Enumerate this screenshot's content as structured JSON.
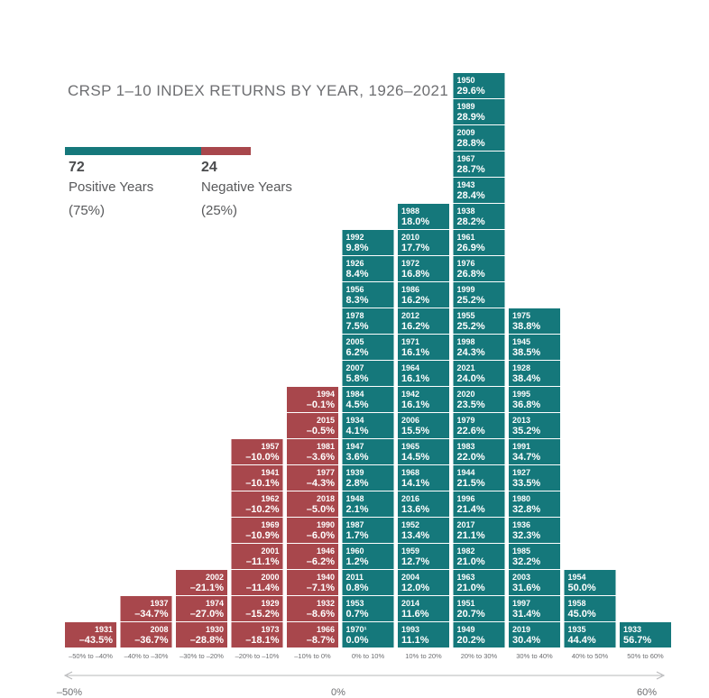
{
  "colors": {
    "positive": "#15787b",
    "negative": "#a8474c",
    "axis": "#b7b8ba",
    "text": "#6d6e71"
  },
  "chart_data": {
    "type": "bar",
    "title": "CRSP 1–10 INDEX RETURNS BY YEAR, 1926–2021",
    "summary": {
      "positive": {
        "count": "72",
        "label": "Positive Years",
        "pct": "(75%)"
      },
      "negative": {
        "count": "24",
        "label": "Negative Years",
        "pct": "(25%)"
      }
    },
    "bins": [
      {
        "label": "–50% to –40%",
        "sign": "negative",
        "years": [
          {
            "year": "1931",
            "value": "–43.5%"
          }
        ]
      },
      {
        "label": "–40% to –30%",
        "sign": "negative",
        "years": [
          {
            "year": "2008",
            "value": "–36.7%"
          },
          {
            "year": "1937",
            "value": "–34.7%"
          }
        ]
      },
      {
        "label": "–30% to –20%",
        "sign": "negative",
        "years": [
          {
            "year": "1930",
            "value": "–28.8%"
          },
          {
            "year": "1974",
            "value": "–27.0%"
          },
          {
            "year": "2002",
            "value": "–21.1%"
          }
        ]
      },
      {
        "label": "–20% to –10%",
        "sign": "negative",
        "years": [
          {
            "year": "1973",
            "value": "–18.1%"
          },
          {
            "year": "1929",
            "value": "–15.2%"
          },
          {
            "year": "2000",
            "value": "–11.4%"
          },
          {
            "year": "2001",
            "value": "–11.1%"
          },
          {
            "year": "1969",
            "value": "–10.9%"
          },
          {
            "year": "1962",
            "value": "–10.2%"
          },
          {
            "year": "1941",
            "value": "–10.1%"
          },
          {
            "year": "1957",
            "value": "–10.0%"
          }
        ]
      },
      {
        "label": "–10% to 0%",
        "sign": "negative",
        "years": [
          {
            "year": "1966",
            "value": "–8.7%"
          },
          {
            "year": "1932",
            "value": "–8.6%"
          },
          {
            "year": "1940",
            "value": "–7.1%"
          },
          {
            "year": "1946",
            "value": "–6.2%"
          },
          {
            "year": "1990",
            "value": "–6.0%"
          },
          {
            "year": "2018",
            "value": "–5.0%"
          },
          {
            "year": "1977",
            "value": "–4.3%"
          },
          {
            "year": "1981",
            "value": "–3.6%"
          },
          {
            "year": "2015",
            "value": "–0.5%"
          },
          {
            "year": "1994",
            "value": "–0.1%"
          }
        ]
      },
      {
        "label": "0% to 10%",
        "sign": "positive",
        "years": [
          {
            "year": "1970¹",
            "value": "0.0%"
          },
          {
            "year": "1953",
            "value": "0.7%"
          },
          {
            "year": "2011",
            "value": "0.8%"
          },
          {
            "year": "1960",
            "value": "1.2%"
          },
          {
            "year": "1987",
            "value": "1.7%"
          },
          {
            "year": "1948",
            "value": "2.1%"
          },
          {
            "year": "1939",
            "value": "2.8%"
          },
          {
            "year": "1947",
            "value": "3.6%"
          },
          {
            "year": "1934",
            "value": "4.1%"
          },
          {
            "year": "1984",
            "value": "4.5%"
          },
          {
            "year": "2007",
            "value": "5.8%"
          },
          {
            "year": "2005",
            "value": "6.2%"
          },
          {
            "year": "1978",
            "value": "7.5%"
          },
          {
            "year": "1956",
            "value": "8.3%"
          },
          {
            "year": "1926",
            "value": "8.4%"
          },
          {
            "year": "1992",
            "value": "9.8%"
          }
        ]
      },
      {
        "label": "10% to 20%",
        "sign": "positive",
        "years": [
          {
            "year": "1993",
            "value": "11.1%"
          },
          {
            "year": "2014",
            "value": "11.6%"
          },
          {
            "year": "2004",
            "value": "12.0%"
          },
          {
            "year": "1959",
            "value": "12.7%"
          },
          {
            "year": "1952",
            "value": "13.4%"
          },
          {
            "year": "2016",
            "value": "13.6%"
          },
          {
            "year": "1968",
            "value": "14.1%"
          },
          {
            "year": "1965",
            "value": "14.5%"
          },
          {
            "year": "2006",
            "value": "15.5%"
          },
          {
            "year": "1942",
            "value": "16.1%"
          },
          {
            "year": "1964",
            "value": "16.1%"
          },
          {
            "year": "1971",
            "value": "16.1%"
          },
          {
            "year": "2012",
            "value": "16.2%"
          },
          {
            "year": "1986",
            "value": "16.2%"
          },
          {
            "year": "1972",
            "value": "16.8%"
          },
          {
            "year": "2010",
            "value": "17.7%"
          },
          {
            "year": "1988",
            "value": "18.0%"
          }
        ]
      },
      {
        "label": "20% to 30%",
        "sign": "positive",
        "years": [
          {
            "year": "1949",
            "value": "20.2%"
          },
          {
            "year": "1951",
            "value": "20.7%"
          },
          {
            "year": "1963",
            "value": "21.0%"
          },
          {
            "year": "1982",
            "value": "21.0%"
          },
          {
            "year": "2017",
            "value": "21.1%"
          },
          {
            "year": "1996",
            "value": "21.4%"
          },
          {
            "year": "1944",
            "value": "21.5%"
          },
          {
            "year": "1983",
            "value": "22.0%"
          },
          {
            "year": "1979",
            "value": "22.6%"
          },
          {
            "year": "2020",
            "value": "23.5%"
          },
          {
            "year": "2021",
            "value": "24.0%"
          },
          {
            "year": "1998",
            "value": "24.3%"
          },
          {
            "year": "1955",
            "value": "25.2%"
          },
          {
            "year": "1999",
            "value": "25.2%"
          },
          {
            "year": "1976",
            "value": "26.8%"
          },
          {
            "year": "1961",
            "value": "26.9%"
          },
          {
            "year": "1938",
            "value": "28.2%"
          },
          {
            "year": "1943",
            "value": "28.4%"
          },
          {
            "year": "1967",
            "value": "28.7%"
          },
          {
            "year": "2009",
            "value": "28.8%"
          },
          {
            "year": "1989",
            "value": "28.9%"
          },
          {
            "year": "1950",
            "value": "29.6%"
          }
        ]
      },
      {
        "label": "30% to 40%",
        "sign": "positive",
        "years": [
          {
            "year": "2019",
            "value": "30.4%"
          },
          {
            "year": "1997",
            "value": "31.4%"
          },
          {
            "year": "2003",
            "value": "31.6%"
          },
          {
            "year": "1985",
            "value": "32.2%"
          },
          {
            "year": "1936",
            "value": "32.3%"
          },
          {
            "year": "1980",
            "value": "32.8%"
          },
          {
            "year": "1927",
            "value": "33.5%"
          },
          {
            "year": "1991",
            "value": "34.7%"
          },
          {
            "year": "2013",
            "value": "35.2%"
          },
          {
            "year": "1995",
            "value": "36.8%"
          },
          {
            "year": "1928",
            "value": "38.4%"
          },
          {
            "year": "1945",
            "value": "38.5%"
          },
          {
            "year": "1975",
            "value": "38.8%"
          }
        ]
      },
      {
        "label": "40% to 50%",
        "sign": "positive",
        "years": [
          {
            "year": "1935",
            "value": "44.4%"
          },
          {
            "year": "1958",
            "value": "45.0%"
          },
          {
            "year": "1954",
            "value": "50.0%"
          }
        ]
      },
      {
        "label": "50% to 60%",
        "sign": "positive",
        "years": [
          {
            "year": "1933",
            "value": "56.7%"
          }
        ]
      }
    ],
    "axis": {
      "min_label": "–50%",
      "zero_label": "0%",
      "max_label": "60%"
    }
  }
}
